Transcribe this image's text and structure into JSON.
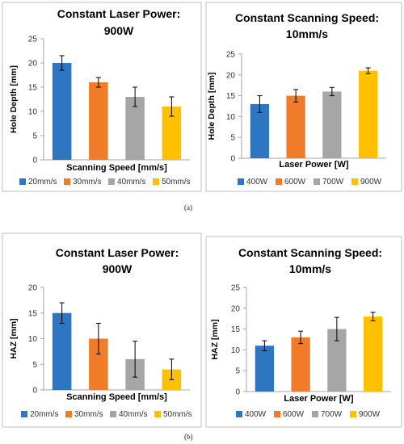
{
  "chart_data": [
    {
      "type": "bar",
      "title": [
        "Constant Laser Power:",
        "900W"
      ],
      "xlabel": "Scanning Speed [mm/s]",
      "ylabel": "Hole Depth [mm]",
      "ylim": [
        0,
        25
      ],
      "yticks": [
        0,
        5,
        10,
        15,
        20,
        25
      ],
      "categories": [
        "20mm/s",
        "30mm/s",
        "40mm/s",
        "50mm/s"
      ],
      "values": [
        20,
        16,
        13,
        11
      ],
      "errors": [
        1.5,
        1.0,
        2.0,
        2.0
      ],
      "colors": [
        "#2e75c2",
        "#f07c2a",
        "#a6a6a6",
        "#ffc000"
      ],
      "legend": "bottom",
      "grid": false
    },
    {
      "type": "bar",
      "title": [
        "Constant Scanning Speed:",
        "10mm/s"
      ],
      "xlabel": "Laser Power [W]",
      "ylabel": "Hole Depth [mm]",
      "ylim": [
        0,
        25
      ],
      "yticks": [
        0,
        5,
        10,
        15,
        20,
        25
      ],
      "categories": [
        "400W",
        "600W",
        "700W",
        "900W"
      ],
      "values": [
        13,
        15,
        16,
        21
      ],
      "errors": [
        2.0,
        1.5,
        1.0,
        0.7
      ],
      "colors": [
        "#2e75c2",
        "#f07c2a",
        "#a6a6a6",
        "#ffc000"
      ],
      "legend": "bottom",
      "grid": false
    },
    {
      "type": "bar",
      "title": [
        "Constant Laser Power:",
        "900W"
      ],
      "xlabel": "Scanning Speed [mm/s]",
      "ylabel": "HAZ [mm]",
      "ylim": [
        0,
        20
      ],
      "yticks": [
        0,
        5,
        10,
        15,
        20
      ],
      "categories": [
        "20mm/s",
        "30mm/s",
        "40mm/s",
        "50mm/s"
      ],
      "values": [
        15,
        10,
        6,
        4
      ],
      "errors": [
        2.0,
        3.0,
        3.5,
        2.0
      ],
      "colors": [
        "#2e75c2",
        "#f07c2a",
        "#a6a6a6",
        "#ffc000"
      ],
      "legend": "bottom",
      "grid": false
    },
    {
      "type": "bar",
      "title": [
        "Constant Scanning Speed:",
        "10mm/s"
      ],
      "xlabel": "Laser Power [W]",
      "ylabel": "HAZ [mm]",
      "ylim": [
        0,
        25
      ],
      "yticks": [
        0,
        5,
        10,
        15,
        20,
        25
      ],
      "categories": [
        "400W",
        "600W",
        "700W",
        "900W"
      ],
      "values": [
        11,
        13,
        15,
        18
      ],
      "errors": [
        1.2,
        1.5,
        2.8,
        1.0
      ],
      "colors": [
        "#2e75c2",
        "#f07c2a",
        "#a6a6a6",
        "#ffc000"
      ],
      "legend": "bottom",
      "grid": false
    }
  ],
  "panel_labels": [
    "(a)",
    "(b)"
  ]
}
